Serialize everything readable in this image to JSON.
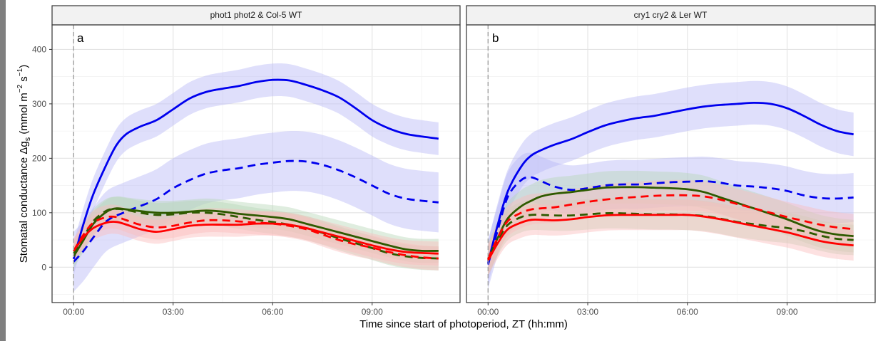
{
  "chart_data": {
    "type": "line",
    "xlabel": "Time since start of photoperiod, ZT (hh:mm)",
    "ylabel_parts": {
      "lead": "Stomatal  conductance  Δg",
      "sub": "s",
      "mid": "  (mmol m",
      "sup1": "−2",
      "mid2": " s",
      "sup2": "−1",
      "tail": ")"
    },
    "x_ticks": [
      "00:00",
      "03:00",
      "06:00",
      "09:00"
    ],
    "x_tick_hours": [
      0,
      3,
      6,
      9
    ],
    "xlim_hours": [
      -0.65,
      11.65
    ],
    "y_ticks": [
      "0",
      "100",
      "200",
      "300",
      "400"
    ],
    "y_tick_values": [
      0,
      100,
      200,
      300,
      400
    ],
    "ylim": [
      -65,
      445
    ],
    "vline_hours": 0,
    "grid": true,
    "colors": {
      "blue": "#0000ee",
      "blue_band": "#b9b9f7",
      "red": "#ff0000",
      "red_band": "#fbbcbc",
      "green": "#2e5a00",
      "green_band": "#b8d6b8"
    },
    "panels": [
      {
        "strip": "phot1 phot2 & Col-5 WT",
        "tag": "a",
        "series": [
          {
            "color": "blue",
            "dash": false,
            "band": 30,
            "x": [
              0,
              0.3,
              0.6,
              1,
              1.3,
              1.6,
              2,
              2.5,
              3,
              3.5,
              4,
              4.5,
              5,
              5.5,
              6,
              6.5,
              7,
              7.5,
              8,
              8.5,
              9,
              9.5,
              10,
              10.5,
              11
            ],
            "y": [
              15,
              80,
              135,
              190,
              225,
              245,
              258,
              270,
              290,
              310,
              322,
              328,
              333,
              340,
              344,
              343,
              335,
              325,
              312,
              292,
              270,
              255,
              245,
              240,
              236
            ]
          },
          {
            "color": "blue",
            "dash": true,
            "band": 55,
            "x": [
              0,
              0.3,
              0.6,
              1,
              1.5,
              2,
              2.5,
              3,
              3.5,
              4,
              4.5,
              5,
              5.5,
              6,
              6.5,
              7,
              7.5,
              8,
              8.5,
              9,
              9.5,
              10,
              10.5,
              11
            ],
            "y": [
              10,
              30,
              55,
              85,
              100,
              112,
              125,
              145,
              160,
              172,
              178,
              182,
              188,
              192,
              195,
              194,
              188,
              178,
              165,
              150,
              135,
              126,
              122,
              119
            ]
          },
          {
            "color": "green",
            "dash": false,
            "band": 22,
            "x": [
              0,
              0.3,
              0.6,
              1,
              1.3,
              1.6,
              2,
              2.5,
              3,
              3.5,
              4,
              4.5,
              5,
              5.5,
              6,
              6.5,
              7,
              7.5,
              8,
              8.5,
              9,
              9.5,
              10,
              10.5,
              11
            ],
            "y": [
              20,
              50,
              80,
              102,
              108,
              106,
              103,
              100,
              100,
              102,
              104,
              102,
              98,
              95,
              92,
              88,
              80,
              72,
              64,
              56,
              48,
              40,
              33,
              30,
              30
            ]
          },
          {
            "color": "green",
            "dash": true,
            "band": 22,
            "x": [
              0,
              0.3,
              0.6,
              1,
              1.3,
              1.6,
              2,
              2.5,
              3,
              3.5,
              4,
              4.5,
              5,
              5.5,
              6,
              6.5,
              7,
              7.5,
              8,
              8.5,
              9,
              9.5,
              10,
              10.5,
              11
            ],
            "y": [
              25,
              55,
              85,
              104,
              107,
              105,
              100,
              96,
              97,
              100,
              100,
              97,
              92,
              87,
              83,
              78,
              72,
              63,
              53,
              44,
              35,
              26,
              20,
              17,
              16
            ]
          },
          {
            "color": "red",
            "dash": false,
            "band": 22,
            "x": [
              0,
              0.3,
              0.6,
              1,
              1.3,
              1.6,
              2,
              2.5,
              3,
              3.5,
              4,
              4.5,
              5,
              5.5,
              6,
              6.5,
              7,
              7.5,
              8,
              8.5,
              9,
              9.5,
              10,
              10.5,
              11
            ],
            "y": [
              30,
              55,
              72,
              82,
              83,
              78,
              70,
              65,
              70,
              76,
              78,
              78,
              78,
              80,
              80,
              78,
              72,
              64,
              56,
              48,
              40,
              33,
              28,
              26,
              25
            ]
          },
          {
            "color": "red",
            "dash": true,
            "band": 22,
            "x": [
              0,
              0.3,
              0.6,
              1,
              1.3,
              1.6,
              2,
              2.5,
              3,
              3.5,
              4,
              4.5,
              5,
              5.5,
              6,
              6.5,
              7,
              7.5,
              8,
              8.5,
              9,
              9.5,
              10,
              10.5,
              11
            ],
            "y": [
              30,
              60,
              82,
              92,
              92,
              86,
              78,
              73,
              76,
              82,
              86,
              86,
              84,
              82,
              80,
              76,
              70,
              60,
              50,
              42,
              36,
              28,
              22,
              18,
              16
            ]
          }
        ]
      },
      {
        "strip": "cry1 cry2 & Ler WT",
        "tag": "b",
        "series": [
          {
            "color": "blue",
            "dash": false,
            "band": 40,
            "x": [
              0,
              0.3,
              0.6,
              1,
              1.3,
              1.6,
              2,
              2.5,
              3,
              3.5,
              4,
              4.5,
              5,
              5.5,
              6,
              6.5,
              7,
              7.5,
              8,
              8.5,
              9,
              9.5,
              10,
              10.5,
              11
            ],
            "y": [
              8,
              80,
              140,
              185,
              205,
              215,
              225,
              235,
              248,
              260,
              268,
              274,
              278,
              284,
              290,
              295,
              298,
              300,
              302,
              300,
              292,
              278,
              262,
              250,
              244
            ]
          },
          {
            "color": "blue",
            "dash": true,
            "band": 45,
            "x": [
              0,
              0.3,
              0.6,
              1,
              1.3,
              1.6,
              2,
              2.5,
              3,
              3.5,
              4,
              4.5,
              5,
              5.5,
              6,
              6.5,
              7,
              7.5,
              8,
              8.5,
              9,
              9.5,
              10,
              10.5,
              11
            ],
            "y": [
              5,
              70,
              130,
              160,
              165,
              158,
              148,
              142,
              145,
              150,
              152,
              152,
              154,
              156,
              157,
              158,
              155,
              150,
              148,
              145,
              140,
              132,
              127,
              126,
              128
            ]
          },
          {
            "color": "green",
            "dash": false,
            "band": 30,
            "x": [
              0,
              0.3,
              0.6,
              1,
              1.3,
              1.6,
              2,
              2.5,
              3,
              3.5,
              4,
              4.5,
              5,
              5.5,
              6,
              6.5,
              7,
              7.5,
              8,
              8.5,
              9,
              9.5,
              10,
              10.5,
              11
            ],
            "y": [
              15,
              55,
              90,
              112,
              122,
              130,
              135,
              138,
              142,
              146,
              147,
              147,
              146,
              145,
              143,
              138,
              128,
              118,
              108,
              98,
              88,
              76,
              66,
              60,
              57
            ]
          },
          {
            "color": "green",
            "dash": true,
            "band": 28,
            "x": [
              0,
              0.3,
              0.6,
              1,
              1.3,
              1.6,
              2,
              2.5,
              3,
              3.5,
              4,
              4.5,
              5,
              5.5,
              6,
              6.5,
              7,
              7.5,
              8,
              8.5,
              9,
              9.5,
              10,
              10.5,
              11
            ],
            "y": [
              12,
              50,
              78,
              92,
              96,
              96,
              95,
              95,
              97,
              99,
              99,
              98,
              97,
              97,
              96,
              94,
              89,
              83,
              79,
              75,
              72,
              66,
              58,
              52,
              50
            ]
          },
          {
            "color": "red",
            "dash": false,
            "band": 28,
            "x": [
              0,
              0.3,
              0.6,
              1,
              1.3,
              1.6,
              2,
              2.5,
              3,
              3.5,
              4,
              4.5,
              5,
              5.5,
              6,
              6.5,
              7,
              7.5,
              8,
              8.5,
              9,
              9.5,
              10,
              10.5,
              11
            ],
            "y": [
              12,
              45,
              70,
              82,
              87,
              87,
              86,
              88,
              92,
              95,
              96,
              96,
              96,
              96,
              96,
              93,
              88,
              82,
              76,
              70,
              64,
              56,
              48,
              43,
              40
            ]
          },
          {
            "color": "red",
            "dash": true,
            "band": 28,
            "x": [
              0,
              0.3,
              0.6,
              1,
              1.3,
              1.6,
              2,
              2.5,
              3,
              3.5,
              4,
              4.5,
              5,
              5.5,
              6,
              6.5,
              7,
              7.5,
              8,
              8.5,
              9,
              9.5,
              10,
              10.5,
              11
            ],
            "y": [
              15,
              55,
              85,
              100,
              106,
              108,
              110,
              115,
              120,
              124,
              127,
              129,
              131,
              132,
              132,
              130,
              124,
              116,
              108,
              100,
              92,
              85,
              78,
              73,
              70
            ]
          }
        ]
      }
    ]
  }
}
